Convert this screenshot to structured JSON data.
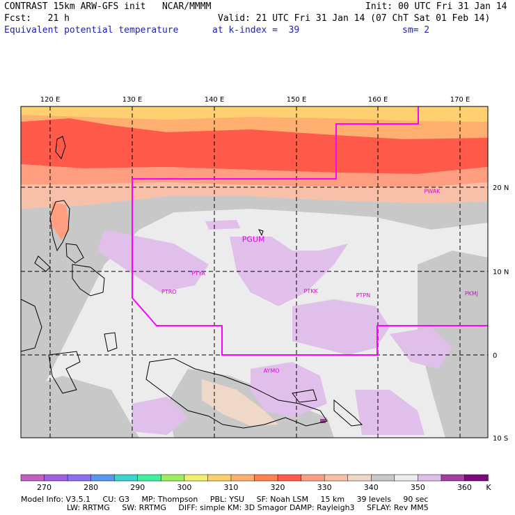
{
  "header": {
    "line1_left": "CONTRAST 15km ARW-GFS init   NCAR/MMMM",
    "line1_right": "Init: 00 UTC Fri 31 Jan 14",
    "line2_left": "Fcst:   21 h",
    "line2_right": "Valid: 21 UTC Fri 31 Jan 14 (07 ChT Sat 01 Feb 14)",
    "field": "Equivalent potential temperature",
    "level": "at k-index =  39",
    "smoothing": "sm= 2"
  },
  "axes": {
    "lon_labels": [
      "120 E",
      "130 E",
      "140 E",
      "150 E",
      "160 E",
      "170 E"
    ],
    "lat_labels": [
      "20 N",
      "10 N",
      "0",
      "10 S"
    ]
  },
  "stations": [
    {
      "id": "PGUM",
      "lon": 144.8,
      "lat": 13.5
    },
    {
      "id": "PTYA",
      "lon": 138.1,
      "lat": 9.5
    },
    {
      "id": "PTRO",
      "lon": 134.5,
      "lat": 7.3
    },
    {
      "id": "PTKK",
      "lon": 151.8,
      "lat": 7.4
    },
    {
      "id": "PTPN",
      "lon": 158.2,
      "lat": 6.9
    },
    {
      "id": "PKMJ",
      "lon": 171.4,
      "lat": 7.1
    },
    {
      "id": "PWAK",
      "lon": 166.6,
      "lat": 19.3
    },
    {
      "id": "AYMO",
      "lon": 147.0,
      "lat": -2.1
    }
  ],
  "colorbar": {
    "unit": "K",
    "labels": [
      "270",
      "280",
      "290",
      "300",
      "310",
      "320",
      "330",
      "340",
      "350",
      "360"
    ],
    "colors": [
      "#c060c0",
      "#a060e0",
      "#8a70f0",
      "#5a95f0",
      "#3fd0d0",
      "#40f0a0",
      "#9af060",
      "#f0f070",
      "#ffd070",
      "#ffb070",
      "#ff8050",
      "#ff5a4a",
      "#ff9e80",
      "#f8c0a8",
      "#f0d8c8",
      "#c8c8c8",
      "#ececec",
      "#e0c0ea",
      "#a040a0",
      "#7a0a7a"
    ]
  },
  "footer": {
    "line1": "Model Info: V3.5.1     CU: G3     MP: Thompson     PBL: YSU     SF: Noah LSM     15 km     39 levels     90 sec",
    "line2": "LW: RRTMG     SW: RRTMG     DIFF: simple KM: 3D Smagor DAMP: Rayleigh3     SFLAY: Rev MM5"
  }
}
